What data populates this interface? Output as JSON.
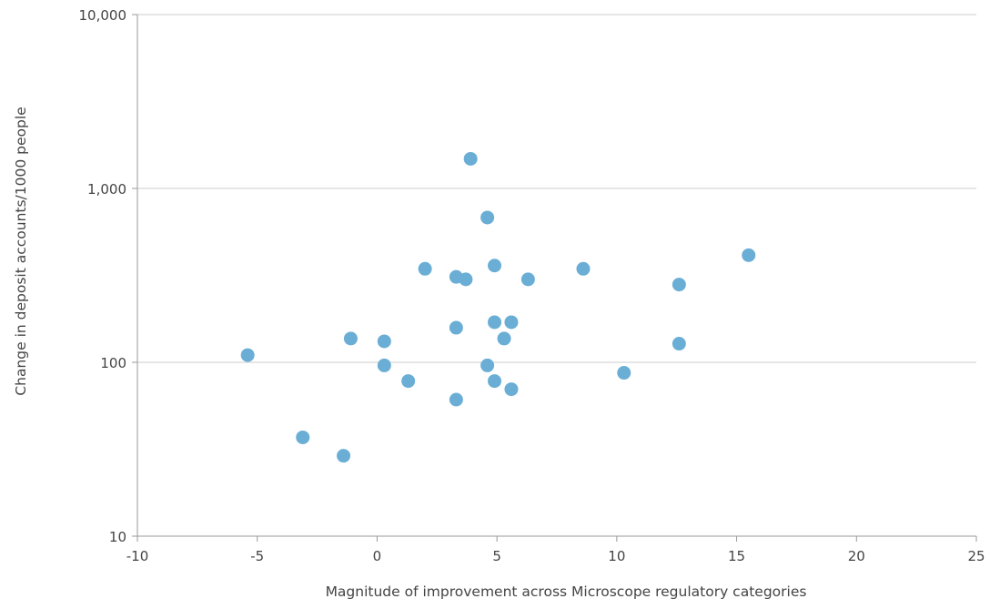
{
  "chart_data": {
    "type": "scatter",
    "title": "",
    "xlabel": "Magnitude of improvement across Microscope regulatory categories",
    "ylabel": "Change in deposit accounts/1000 people",
    "xlim": [
      -10,
      25
    ],
    "ylim": [
      10,
      10000
    ],
    "yscale": "log",
    "x_ticks": [
      -10,
      -5,
      0,
      5,
      10,
      15,
      20,
      25
    ],
    "x_tick_labels": [
      "-10",
      "-5",
      "0",
      "5",
      "10",
      "15",
      "20",
      "25"
    ],
    "y_ticks": [
      10,
      100,
      1000,
      10000
    ],
    "y_tick_labels": [
      "10",
      "100",
      "1,000",
      "10,000"
    ],
    "grid": "horizontal",
    "point_color": "#6aaed6",
    "gridline_color": "#cccccc",
    "points": [
      {
        "x": -5.4,
        "y": 110
      },
      {
        "x": -3.1,
        "y": 37
      },
      {
        "x": -1.4,
        "y": 29
      },
      {
        "x": -1.1,
        "y": 137
      },
      {
        "x": 0.3,
        "y": 132
      },
      {
        "x": 0.3,
        "y": 96
      },
      {
        "x": 1.3,
        "y": 78
      },
      {
        "x": 2.0,
        "y": 345
      },
      {
        "x": 3.3,
        "y": 310
      },
      {
        "x": 3.3,
        "y": 158
      },
      {
        "x": 3.3,
        "y": 61
      },
      {
        "x": 3.7,
        "y": 300
      },
      {
        "x": 3.9,
        "y": 1480
      },
      {
        "x": 4.6,
        "y": 680
      },
      {
        "x": 4.6,
        "y": 96
      },
      {
        "x": 4.9,
        "y": 360
      },
      {
        "x": 4.9,
        "y": 170
      },
      {
        "x": 4.9,
        "y": 78
      },
      {
        "x": 5.3,
        "y": 137
      },
      {
        "x": 5.6,
        "y": 170
      },
      {
        "x": 5.6,
        "y": 70
      },
      {
        "x": 6.3,
        "y": 300
      },
      {
        "x": 8.6,
        "y": 345
      },
      {
        "x": 10.3,
        "y": 87
      },
      {
        "x": 12.6,
        "y": 280
      },
      {
        "x": 12.6,
        "y": 128
      },
      {
        "x": 15.5,
        "y": 413
      }
    ]
  }
}
